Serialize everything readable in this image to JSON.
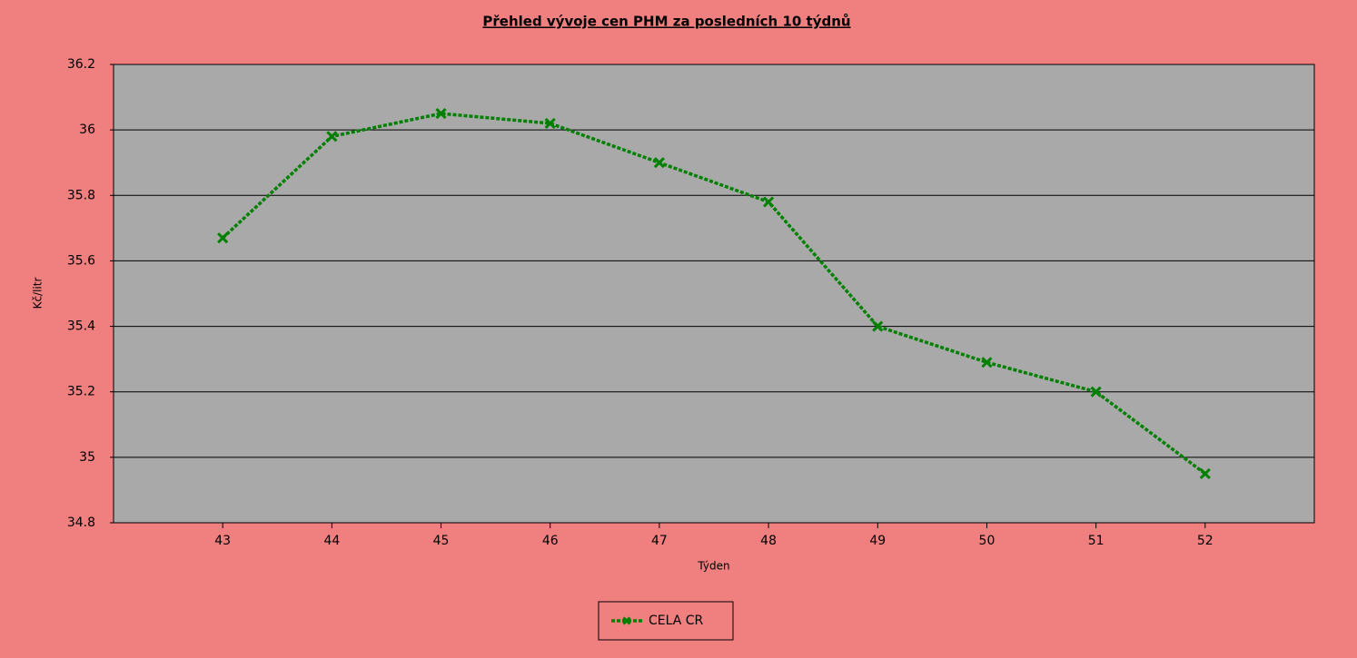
{
  "chart_data": {
    "type": "line",
    "title": "Přehled vývoje cen PHM za posledních 10 týdnů",
    "x_label": "Týden",
    "y_label": "Kč/litr",
    "x": [
      43,
      44,
      45,
      46,
      47,
      48,
      49,
      50,
      51,
      52
    ],
    "xlim": [
      42,
      53
    ],
    "xticks": [
      43,
      44,
      45,
      46,
      47,
      48,
      49,
      50,
      51,
      52
    ],
    "ylim": [
      34.8,
      36.2
    ],
    "yticks": [
      34.8,
      35,
      35.2,
      35.4,
      35.6,
      35.8,
      36,
      36.2
    ],
    "grid": true,
    "series": [
      {
        "name": "CELA CR",
        "color": "#008000",
        "values": [
          35.67,
          35.98,
          36.05,
          36.02,
          35.9,
          35.78,
          35.4,
          35.29,
          35.2,
          34.95
        ]
      }
    ]
  }
}
